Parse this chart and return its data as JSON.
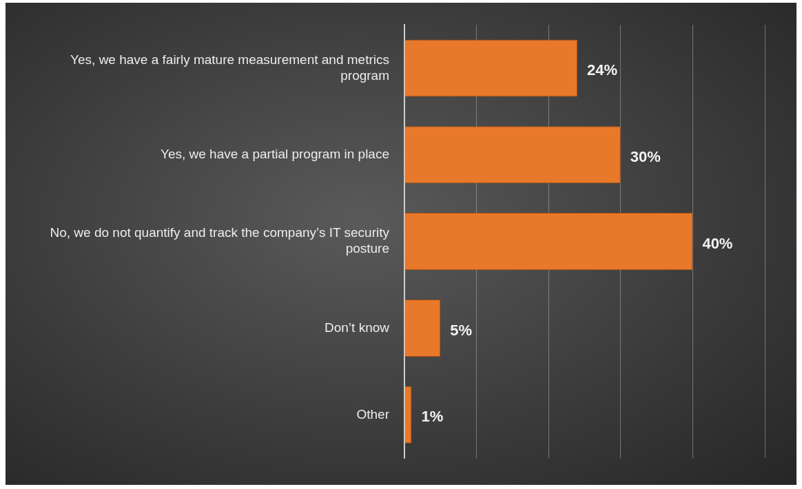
{
  "chart_data": {
    "type": "bar",
    "orientation": "horizontal",
    "categories": [
      "Yes, we have a fairly mature measurement and metrics program",
      "Yes, we have a partial program in place",
      "No, we do not quantify and track the company’s IT security posture",
      "Don’t know",
      "Other"
    ],
    "values": [
      24,
      30,
      40,
      5,
      1
    ],
    "value_labels": [
      "24%",
      "30%",
      "40%",
      "5%",
      "1%"
    ],
    "color": "#e8782a",
    "xlim": [
      0,
      50
    ],
    "xticks": [
      {
        "value": 0,
        "label": null
      },
      {
        "value": 10,
        "label": null
      },
      {
        "value": 20,
        "label": null
      },
      {
        "value": 30,
        "label": null
      },
      {
        "value": 40,
        "label": null
      },
      {
        "value": 50,
        "label": null
      }
    ],
    "tick_labels": "y",
    "grid": "x",
    "legend": false
  }
}
